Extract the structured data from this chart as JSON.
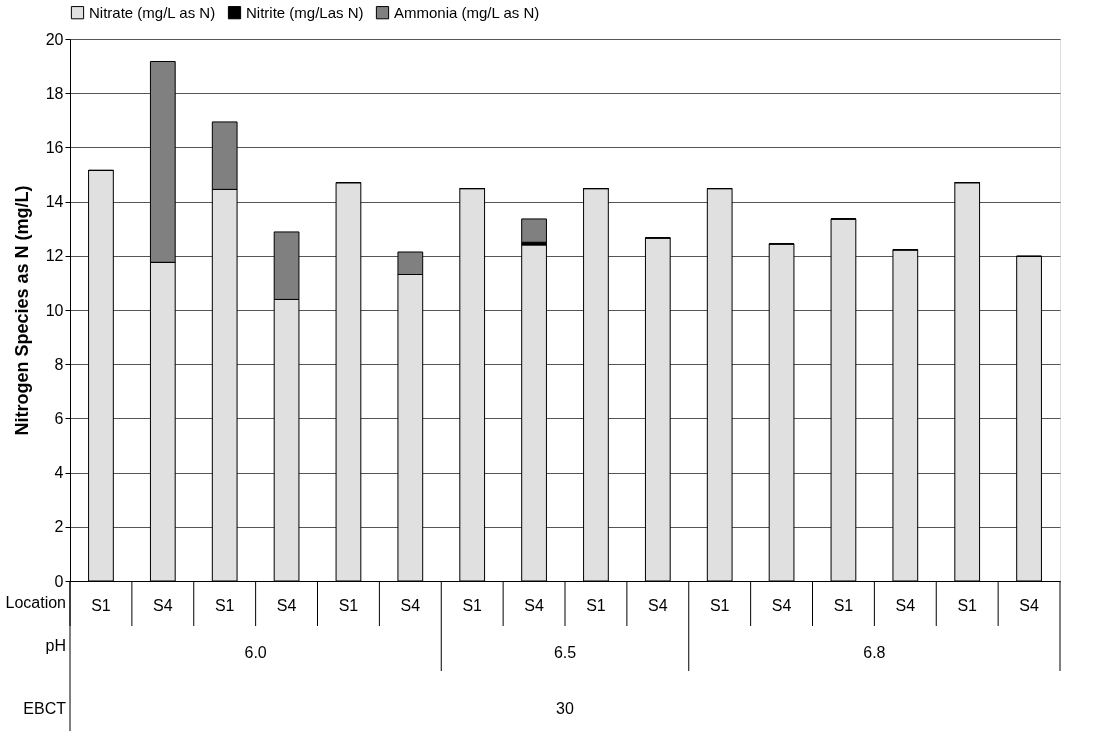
{
  "chart_data": {
    "type": "bar",
    "stacked": true,
    "ylabel": "Nitrogen Species as N (mg/L)",
    "categories": [
      "S1",
      "S4",
      "S1",
      "S4",
      "S1",
      "S4",
      "S1",
      "S4",
      "S1",
      "S4",
      "S1",
      "S4",
      "S1",
      "S4",
      "S1",
      "S4"
    ],
    "series": [
      {
        "name": "Nitrate (mg/L as N)",
        "color": "#e0e0e0",
        "values": [
          15.15,
          11.76,
          14.45,
          10.39,
          14.7,
          11.31,
          14.48,
          12.4,
          14.48,
          12.66,
          14.48,
          12.44,
          13.36,
          12.22,
          14.7,
          11.98
        ]
      },
      {
        "name": "Nitrite (mg/Las N)",
        "color": "#000000",
        "values": [
          0,
          0,
          0,
          0,
          0,
          0,
          0,
          0.1,
          0,
          0,
          0,
          0,
          0,
          0,
          0,
          0
        ]
      },
      {
        "name": "Ammonia (mg/L as N)",
        "color": "#808080",
        "values": [
          0,
          7.41,
          2.49,
          2.49,
          0,
          0.83,
          0,
          0.86,
          0,
          0,
          0,
          0,
          0,
          0,
          0,
          0
        ]
      }
    ],
    "ylim": [
      0,
      20
    ],
    "yticks": [
      0,
      2,
      4,
      6,
      8,
      10,
      12,
      14,
      16,
      18,
      20
    ],
    "grid": "y",
    "legend": "top",
    "annotations": [
      "Location",
      "pH",
      "6.0",
      "6.5",
      "6.8",
      "EBCT",
      "30"
    ]
  }
}
